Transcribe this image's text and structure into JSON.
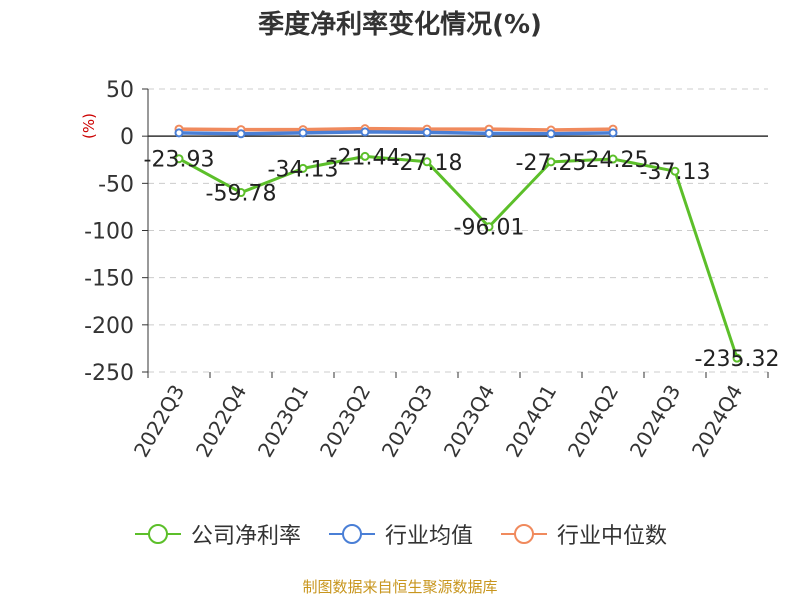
{
  "title": "季度净利率变化情况(%)",
  "footer": "制图数据来自恒生聚源数据库",
  "chart_data": {
    "type": "line",
    "categories": [
      "2022Q3",
      "2022Q4",
      "2023Q1",
      "2023Q2",
      "2023Q3",
      "2023Q4",
      "2024Q1",
      "2024Q2",
      "2024Q3",
      "2024Q4"
    ],
    "ylabel": "(%)",
    "ylim": [
      -250,
      50
    ],
    "yticks": [
      50,
      0,
      -50,
      -100,
      -150,
      -200,
      -250
    ],
    "grid": "horizontal-dashed",
    "legend_position": "bottom",
    "series": [
      {
        "name": "公司净利率",
        "color": "#5cbf2a",
        "labels": [
          "-23.93",
          "-59.78",
          "-34.13",
          "-21.44",
          "-27.18",
          "-96.01",
          "-27.25",
          "-24.25",
          "-37.13",
          "-235.32"
        ],
        "values": [
          -23.93,
          -59.78,
          -34.13,
          -21.44,
          -27.18,
          -96.01,
          -27.25,
          -24.25,
          -37.13,
          -235.32
        ]
      },
      {
        "name": "行业均值",
        "color": "#4a7fd6",
        "values": [
          3.5,
          2.5,
          3.5,
          4.5,
          4.0,
          3.0,
          2.5,
          3.5,
          null,
          null
        ]
      },
      {
        "name": "行业中位数",
        "color": "#f08a5d",
        "values": [
          7.5,
          7.0,
          7.0,
          8.0,
          7.5,
          7.5,
          6.5,
          7.5,
          null,
          null
        ]
      }
    ]
  }
}
